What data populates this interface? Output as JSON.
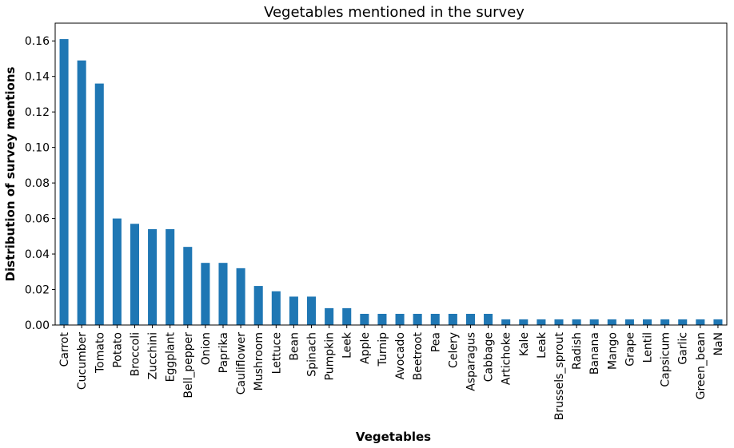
{
  "chart_data": {
    "type": "bar",
    "title": "Vegetables mentioned in the survey",
    "xlabel": "Vegetables",
    "ylabel": "Distribution of survey mentions",
    "ylim": [
      0,
      0.17
    ],
    "yticks": [
      "0.00",
      "0.02",
      "0.04",
      "0.06",
      "0.08",
      "0.10",
      "0.12",
      "0.14",
      "0.16"
    ],
    "grid": false,
    "bar_color": "#1f77b4",
    "categories": [
      "Carrot",
      "Cucumber",
      "Tomato",
      "Potato",
      "Broccoli",
      "Zucchini",
      "Eggplant",
      "Bell_pepper",
      "Onion",
      "Paprika",
      "Cauliflower",
      "Mushroom",
      "Lettuce",
      "Bean",
      "Spinach",
      "Pumpkin",
      "Leek",
      "Apple",
      "Turnip",
      "Avocado",
      "Beetroot",
      "Pea",
      "Celery",
      "Asparagus",
      "Cabbage",
      "Artichoke",
      "Kale",
      "Leak",
      "Brussels_sprout",
      "Radish",
      "Banana",
      "Mango",
      "Grape",
      "Lentil",
      "Capsicum",
      "Garlic",
      "Green_bean",
      "NaN"
    ],
    "values": [
      0.161,
      0.149,
      0.136,
      0.06,
      0.057,
      0.054,
      0.054,
      0.044,
      0.035,
      0.035,
      0.032,
      0.022,
      0.019,
      0.016,
      0.016,
      0.0095,
      0.0095,
      0.0063,
      0.0063,
      0.0063,
      0.0063,
      0.0063,
      0.0063,
      0.0063,
      0.0063,
      0.0032,
      0.0032,
      0.0032,
      0.0032,
      0.0032,
      0.0032,
      0.0032,
      0.0032,
      0.0032,
      0.0032,
      0.0032,
      0.0032,
      0.0032
    ]
  }
}
